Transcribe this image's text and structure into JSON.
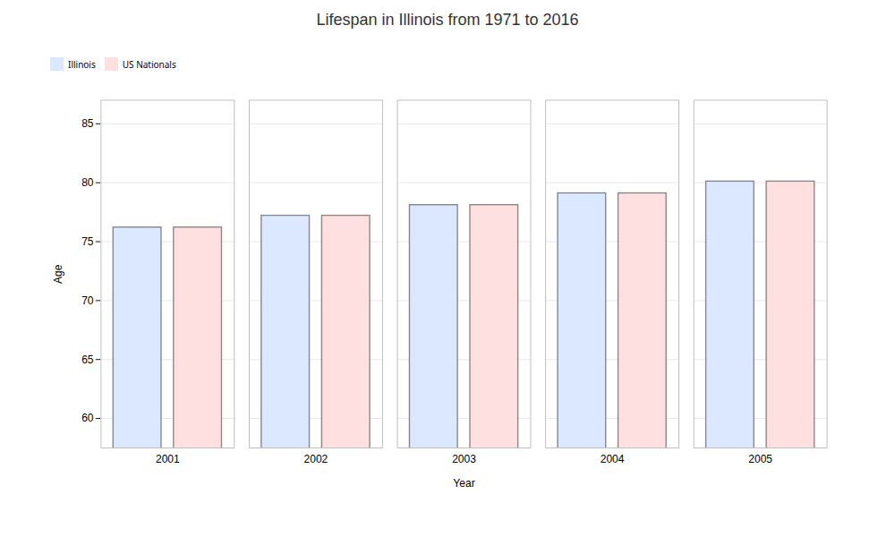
{
  "chart_data": {
    "type": "bar",
    "title": "Lifespan in Illinois from 1971 to 2016",
    "xlabel": "Year",
    "ylabel": "Age",
    "categories": [
      "2001",
      "2002",
      "2003",
      "2004",
      "2005"
    ],
    "series": [
      {
        "name": "Illinois",
        "color": "#dce8ff",
        "values": [
          76.2,
          77.2,
          78.1,
          79.1,
          80.1
        ]
      },
      {
        "name": "US Nationals",
        "color": "#ffe0e0",
        "values": [
          76.2,
          77.2,
          78.1,
          79.1,
          80.1
        ]
      }
    ],
    "ylim": [
      57.5,
      87
    ],
    "yticks": [
      60,
      65,
      70,
      75,
      80,
      85
    ],
    "grid": true,
    "legend": "top"
  }
}
